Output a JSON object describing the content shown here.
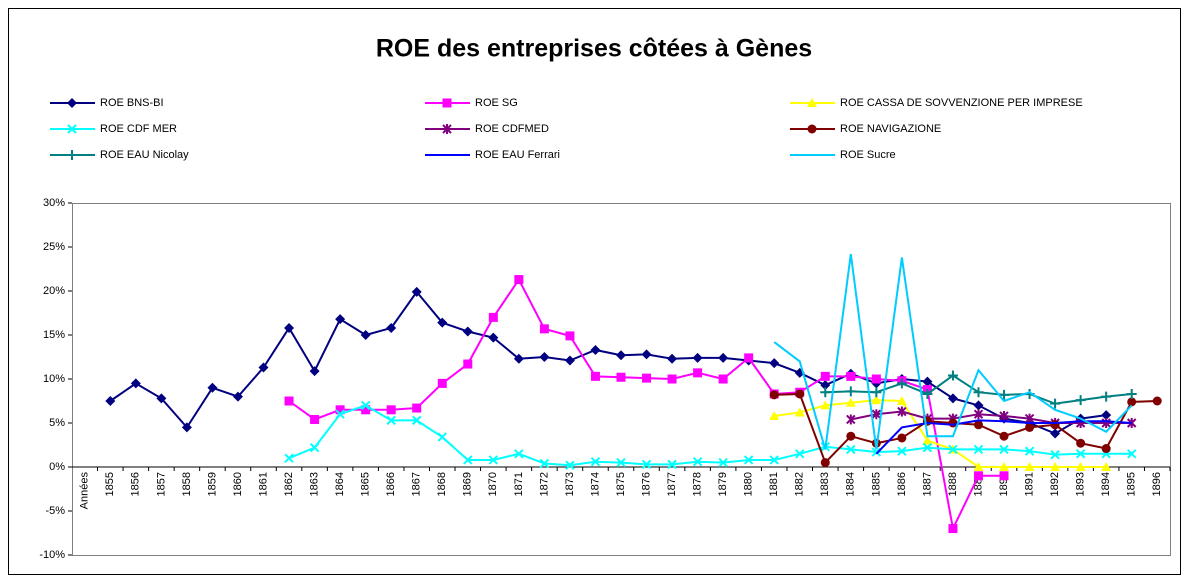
{
  "chart_data": {
    "type": "line",
    "title": "ROE des entreprises côtées à Gènes",
    "categories": [
      "Années",
      "1855",
      "1856",
      "1857",
      "1858",
      "1859",
      "1860",
      "1861",
      "1862",
      "1863",
      "1864",
      "1865",
      "1866",
      "1867",
      "1868",
      "1869",
      "1870",
      "1871",
      "1872",
      "1873",
      "1874",
      "1875",
      "1876",
      "1877",
      "1878",
      "1879",
      "1880",
      "1881",
      "1882",
      "1883",
      "1884",
      "1885",
      "1886",
      "1887",
      "1888",
      "1889",
      "1890",
      "1891",
      "1892",
      "1893",
      "1894",
      "1895",
      "1896"
    ],
    "ylim": [
      -10,
      30
    ],
    "yticks": [
      {
        "value": -10,
        "label": "-10%"
      },
      {
        "value": -5,
        "label": "-5%"
      },
      {
        "value": 0,
        "label": "0%"
      },
      {
        "value": 5,
        "label": "5%"
      },
      {
        "value": 10,
        "label": "10%"
      },
      {
        "value": 15,
        "label": "15%"
      },
      {
        "value": 20,
        "label": "20%"
      },
      {
        "value": 25,
        "label": "25%"
      },
      {
        "value": 30,
        "label": "30%"
      }
    ],
    "grid": false,
    "series": [
      {
        "name": "ROE BNS-BI",
        "color": "#000080",
        "marker": "diamond",
        "values": [
          null,
          7.5,
          9.5,
          7.8,
          4.5,
          9,
          8,
          11.3,
          15.8,
          10.9,
          16.8,
          15,
          15.8,
          19.9,
          16.4,
          15.4,
          14.7,
          12.3,
          12.5,
          12.1,
          13.3,
          12.7,
          12.8,
          12.3,
          12.4,
          12.4,
          12.1,
          11.8,
          10.7,
          9.3,
          10.6,
          9.5,
          10,
          9.7,
          7.8,
          7,
          5.5,
          5,
          3.8,
          5.5,
          5.9,
          null,
          null
        ]
      },
      {
        "name": "ROE SG",
        "color": "#ff00ff",
        "marker": "square",
        "values": [
          null,
          null,
          null,
          null,
          null,
          null,
          null,
          null,
          7.5,
          5.4,
          6.5,
          6.5,
          6.5,
          6.7,
          9.5,
          11.7,
          17,
          21.3,
          15.7,
          14.9,
          10.3,
          10.2,
          10.1,
          10,
          10.7,
          10,
          12.4,
          8.3,
          8.5,
          10.3,
          10.3,
          10,
          9.8,
          8.8,
          -7,
          -1,
          -1,
          null,
          null,
          null,
          null,
          null,
          null
        ]
      },
      {
        "name": "ROE CASSA DE SOVVENZIONE PER IMPRESE",
        "color": "#ffff00",
        "marker": "triangle",
        "values": [
          null,
          null,
          null,
          null,
          null,
          null,
          null,
          null,
          null,
          null,
          null,
          null,
          null,
          null,
          null,
          null,
          null,
          null,
          null,
          null,
          null,
          null,
          null,
          null,
          null,
          null,
          null,
          5.8,
          6.2,
          7,
          7.3,
          7.6,
          7.5,
          3,
          2,
          0,
          0,
          0,
          0,
          0,
          0,
          null,
          null
        ]
      },
      {
        "name": "ROE CDF MER",
        "color": "#00ffff",
        "marker": "x",
        "values": [
          null,
          null,
          null,
          null,
          null,
          null,
          null,
          null,
          1,
          2.2,
          6,
          7,
          5.3,
          5.3,
          3.4,
          0.8,
          0.8,
          1.5,
          0.4,
          0.2,
          0.6,
          0.5,
          0.3,
          0.3,
          0.6,
          0.5,
          0.8,
          0.8,
          1.5,
          2.3,
          2,
          1.7,
          1.8,
          2.2,
          2,
          2,
          2,
          1.8,
          1.4,
          1.5,
          1.5,
          1.5,
          null
        ]
      },
      {
        "name": "ROE CDFMED",
        "color": "#800080",
        "marker": "star",
        "values": [
          null,
          null,
          null,
          null,
          null,
          null,
          null,
          null,
          null,
          null,
          null,
          null,
          null,
          null,
          null,
          null,
          null,
          null,
          null,
          null,
          null,
          null,
          null,
          null,
          null,
          null,
          null,
          null,
          null,
          null,
          5.4,
          6,
          6.3,
          5.5,
          5.5,
          6,
          5.8,
          5.5,
          5,
          5,
          5,
          5,
          null
        ]
      },
      {
        "name": "ROE NAVIGAZIONE",
        "color": "#800000",
        "marker": "circle",
        "values": [
          null,
          null,
          null,
          null,
          null,
          null,
          null,
          null,
          null,
          null,
          null,
          null,
          null,
          null,
          null,
          null,
          null,
          null,
          null,
          null,
          null,
          null,
          null,
          null,
          null,
          null,
          null,
          8.2,
          8.3,
          0.5,
          3.5,
          2.7,
          3.3,
          5.2,
          5,
          4.8,
          3.5,
          4.5,
          4.8,
          2.7,
          2.1,
          7.4,
          7.5
        ]
      },
      {
        "name": "ROE EAU Nicolay",
        "color": "#008080",
        "marker": "plus",
        "values": [
          null,
          null,
          null,
          null,
          null,
          null,
          null,
          null,
          null,
          null,
          null,
          null,
          null,
          null,
          null,
          null,
          null,
          null,
          null,
          null,
          null,
          null,
          null,
          null,
          null,
          null,
          null,
          null,
          null,
          8.5,
          8.6,
          8.5,
          9.5,
          8.3,
          10.4,
          8.5,
          8.2,
          8.3,
          7.2,
          7.6,
          8,
          8.3,
          null
        ]
      },
      {
        "name": "ROE EAU Ferrari",
        "color": "#0000ff",
        "marker": "none",
        "values": [
          null,
          null,
          null,
          null,
          null,
          null,
          null,
          null,
          null,
          null,
          null,
          null,
          null,
          null,
          null,
          null,
          null,
          null,
          null,
          null,
          null,
          null,
          null,
          null,
          null,
          null,
          null,
          null,
          null,
          null,
          null,
          1.5,
          4.5,
          5,
          4.8,
          5.3,
          5.2,
          5,
          5,
          5.2,
          5.2,
          5,
          null
        ]
      },
      {
        "name": "ROE Sucre",
        "color": "#00ccff",
        "marker": "none",
        "values": [
          null,
          null,
          null,
          null,
          null,
          null,
          null,
          null,
          null,
          null,
          null,
          null,
          null,
          null,
          null,
          null,
          null,
          null,
          null,
          null,
          null,
          null,
          null,
          null,
          null,
          null,
          null,
          14.2,
          12,
          2,
          24.2,
          2,
          23.8,
          3.5,
          3.5,
          11,
          7.5,
          8.5,
          6.5,
          5.5,
          4,
          7,
          null
        ]
      }
    ]
  }
}
